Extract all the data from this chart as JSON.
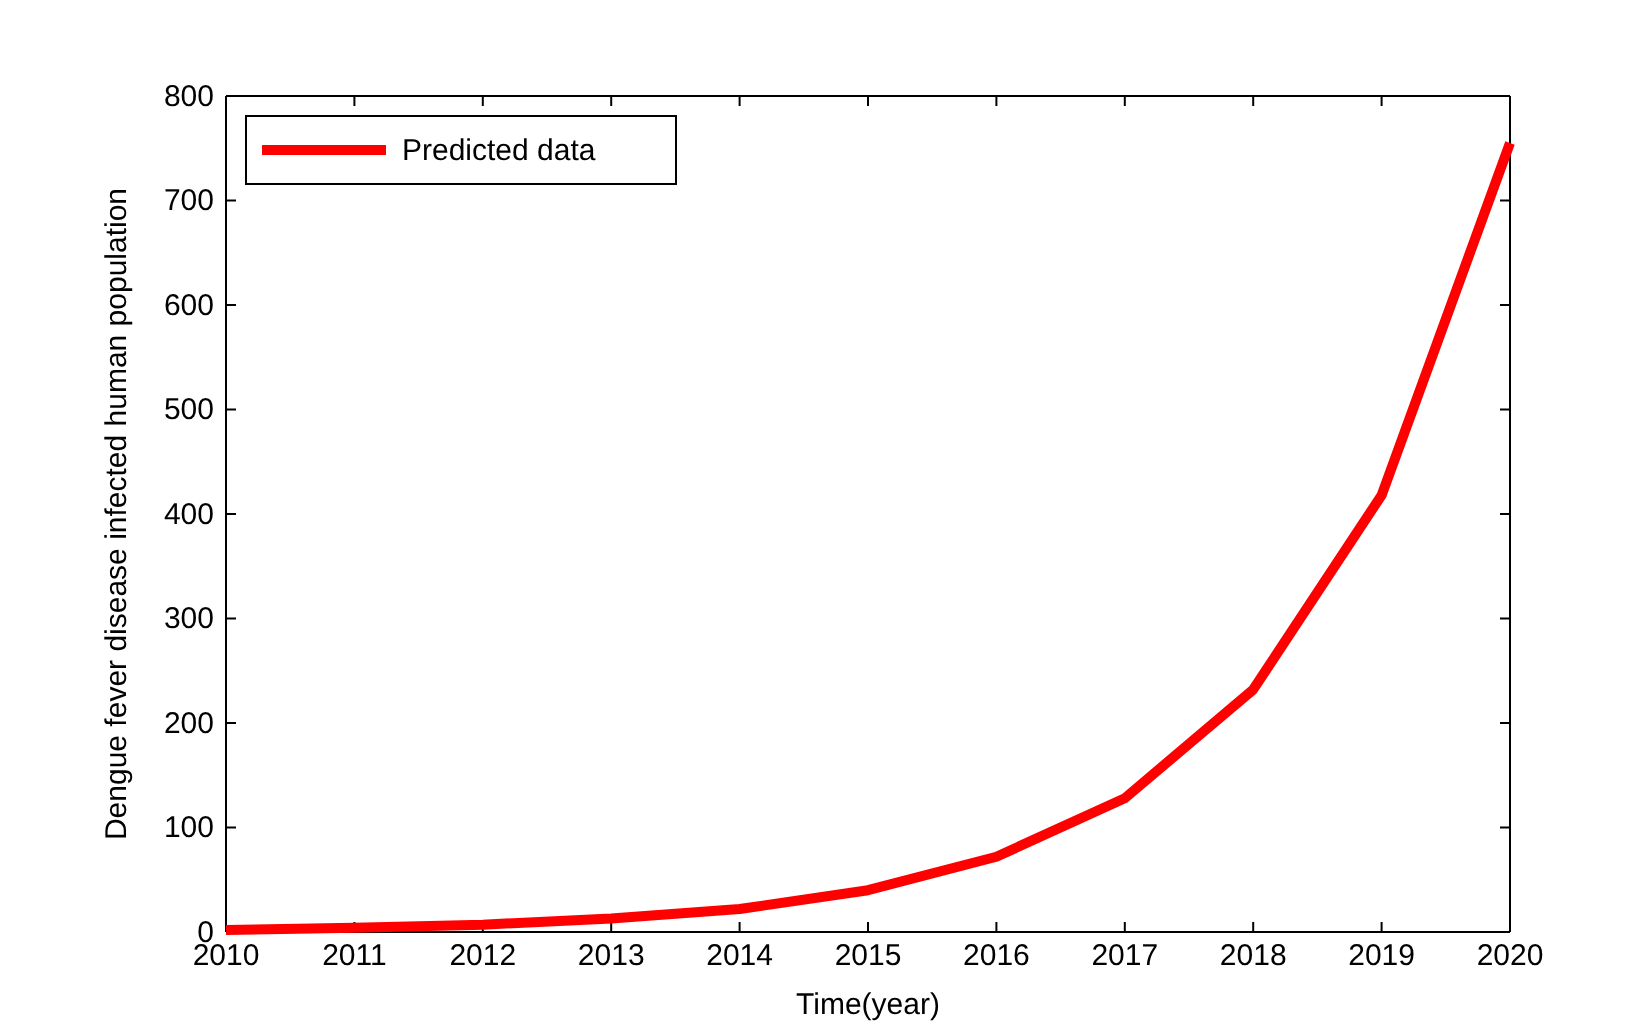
{
  "chart_data": {
    "type": "line",
    "xlabel": "Time(year)",
    "ylabel": "Dengue fever disease infected human population",
    "x": [
      2010,
      2011,
      2012,
      2013,
      2014,
      2015,
      2016,
      2017,
      2018,
      2019,
      2020
    ],
    "series": [
      {
        "name": "Predicted data",
        "color": "#ff0000",
        "values": [
          2,
          4,
          7,
          13,
          22,
          40,
          72,
          128,
          232,
          418,
          755
        ]
      }
    ],
    "xlim": [
      2010,
      2020
    ],
    "xticks": [
      2010,
      2011,
      2012,
      2013,
      2014,
      2015,
      2016,
      2017,
      2018,
      2019,
      2020
    ],
    "ylim": [
      0,
      800
    ],
    "yticks": [
      0,
      100,
      200,
      300,
      400,
      500,
      600,
      700,
      800
    ],
    "grid": false,
    "legend": "top left",
    "marker": "none",
    "line_style": "solid"
  }
}
